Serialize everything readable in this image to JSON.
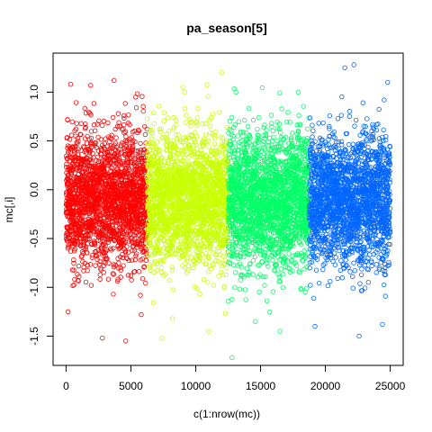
{
  "chart_data": {
    "type": "scatter",
    "title": "pa_season[5]",
    "xlabel": "c(1:nrow(mc))",
    "ylabel": "mc[,i]",
    "xlim": [
      -1000,
      26000
    ],
    "ylim": [
      -1.8,
      1.4
    ],
    "x_ticks": [
      0,
      5000,
      10000,
      15000,
      20000,
      25000
    ],
    "x_tick_labels": [
      "0",
      "5000",
      "10000",
      "15000",
      "20000",
      "25000"
    ],
    "y_ticks": [
      -1.5,
      -1.0,
      -0.5,
      0.0,
      0.5,
      1.0
    ],
    "y_tick_labels": [
      "-1.5",
      "-1.0",
      "-0.5",
      "0.0",
      "0.5",
      "1.0"
    ],
    "marker": "open-circle",
    "grid": false,
    "legend": "none",
    "series": [
      {
        "x_range": [
          1,
          6250
        ],
        "n": 6250,
        "color": "#ff0000",
        "center": -0.1,
        "dense_band": [
          -0.8,
          0.55
        ],
        "extremes": [
          [
            350,
            1.08
          ],
          [
            1900,
            1.07
          ],
          [
            3700,
            1.12
          ],
          [
            2800,
            -1.52
          ],
          [
            4600,
            -1.55
          ],
          [
            150,
            -1.25
          ],
          [
            5800,
            -1.28
          ]
        ]
      },
      {
        "x_range": [
          6251,
          12500
        ],
        "n": 6250,
        "color": "#c8ff00",
        "center": -0.1,
        "dense_band": [
          -0.8,
          0.55
        ],
        "extremes": [
          [
            12000,
            1.2
          ],
          [
            9000,
            1.05
          ],
          [
            7400,
            -1.52
          ],
          [
            11000,
            -1.45
          ],
          [
            8200,
            -1.32
          ]
        ]
      },
      {
        "x_range": [
          12501,
          18750
        ],
        "n": 6250,
        "color": "#00ff66",
        "center": -0.1,
        "dense_band": [
          -0.8,
          0.55
        ],
        "extremes": [
          [
            12800,
            -1.72
          ],
          [
            13100,
            1.0
          ],
          [
            16500,
            -1.45
          ],
          [
            14600,
            -1.35
          ],
          [
            17900,
            1.0
          ]
        ]
      },
      {
        "x_range": [
          18751,
          25000
        ],
        "n": 6250,
        "color": "#0066ff",
        "center": -0.1,
        "dense_band": [
          -0.8,
          0.55
        ],
        "extremes": [
          [
            21500,
            1.25
          ],
          [
            22200,
            1.28
          ],
          [
            24800,
            1.1
          ],
          [
            19200,
            -1.4
          ],
          [
            22600,
            -1.5
          ],
          [
            24400,
            -1.38
          ]
        ]
      }
    ]
  }
}
